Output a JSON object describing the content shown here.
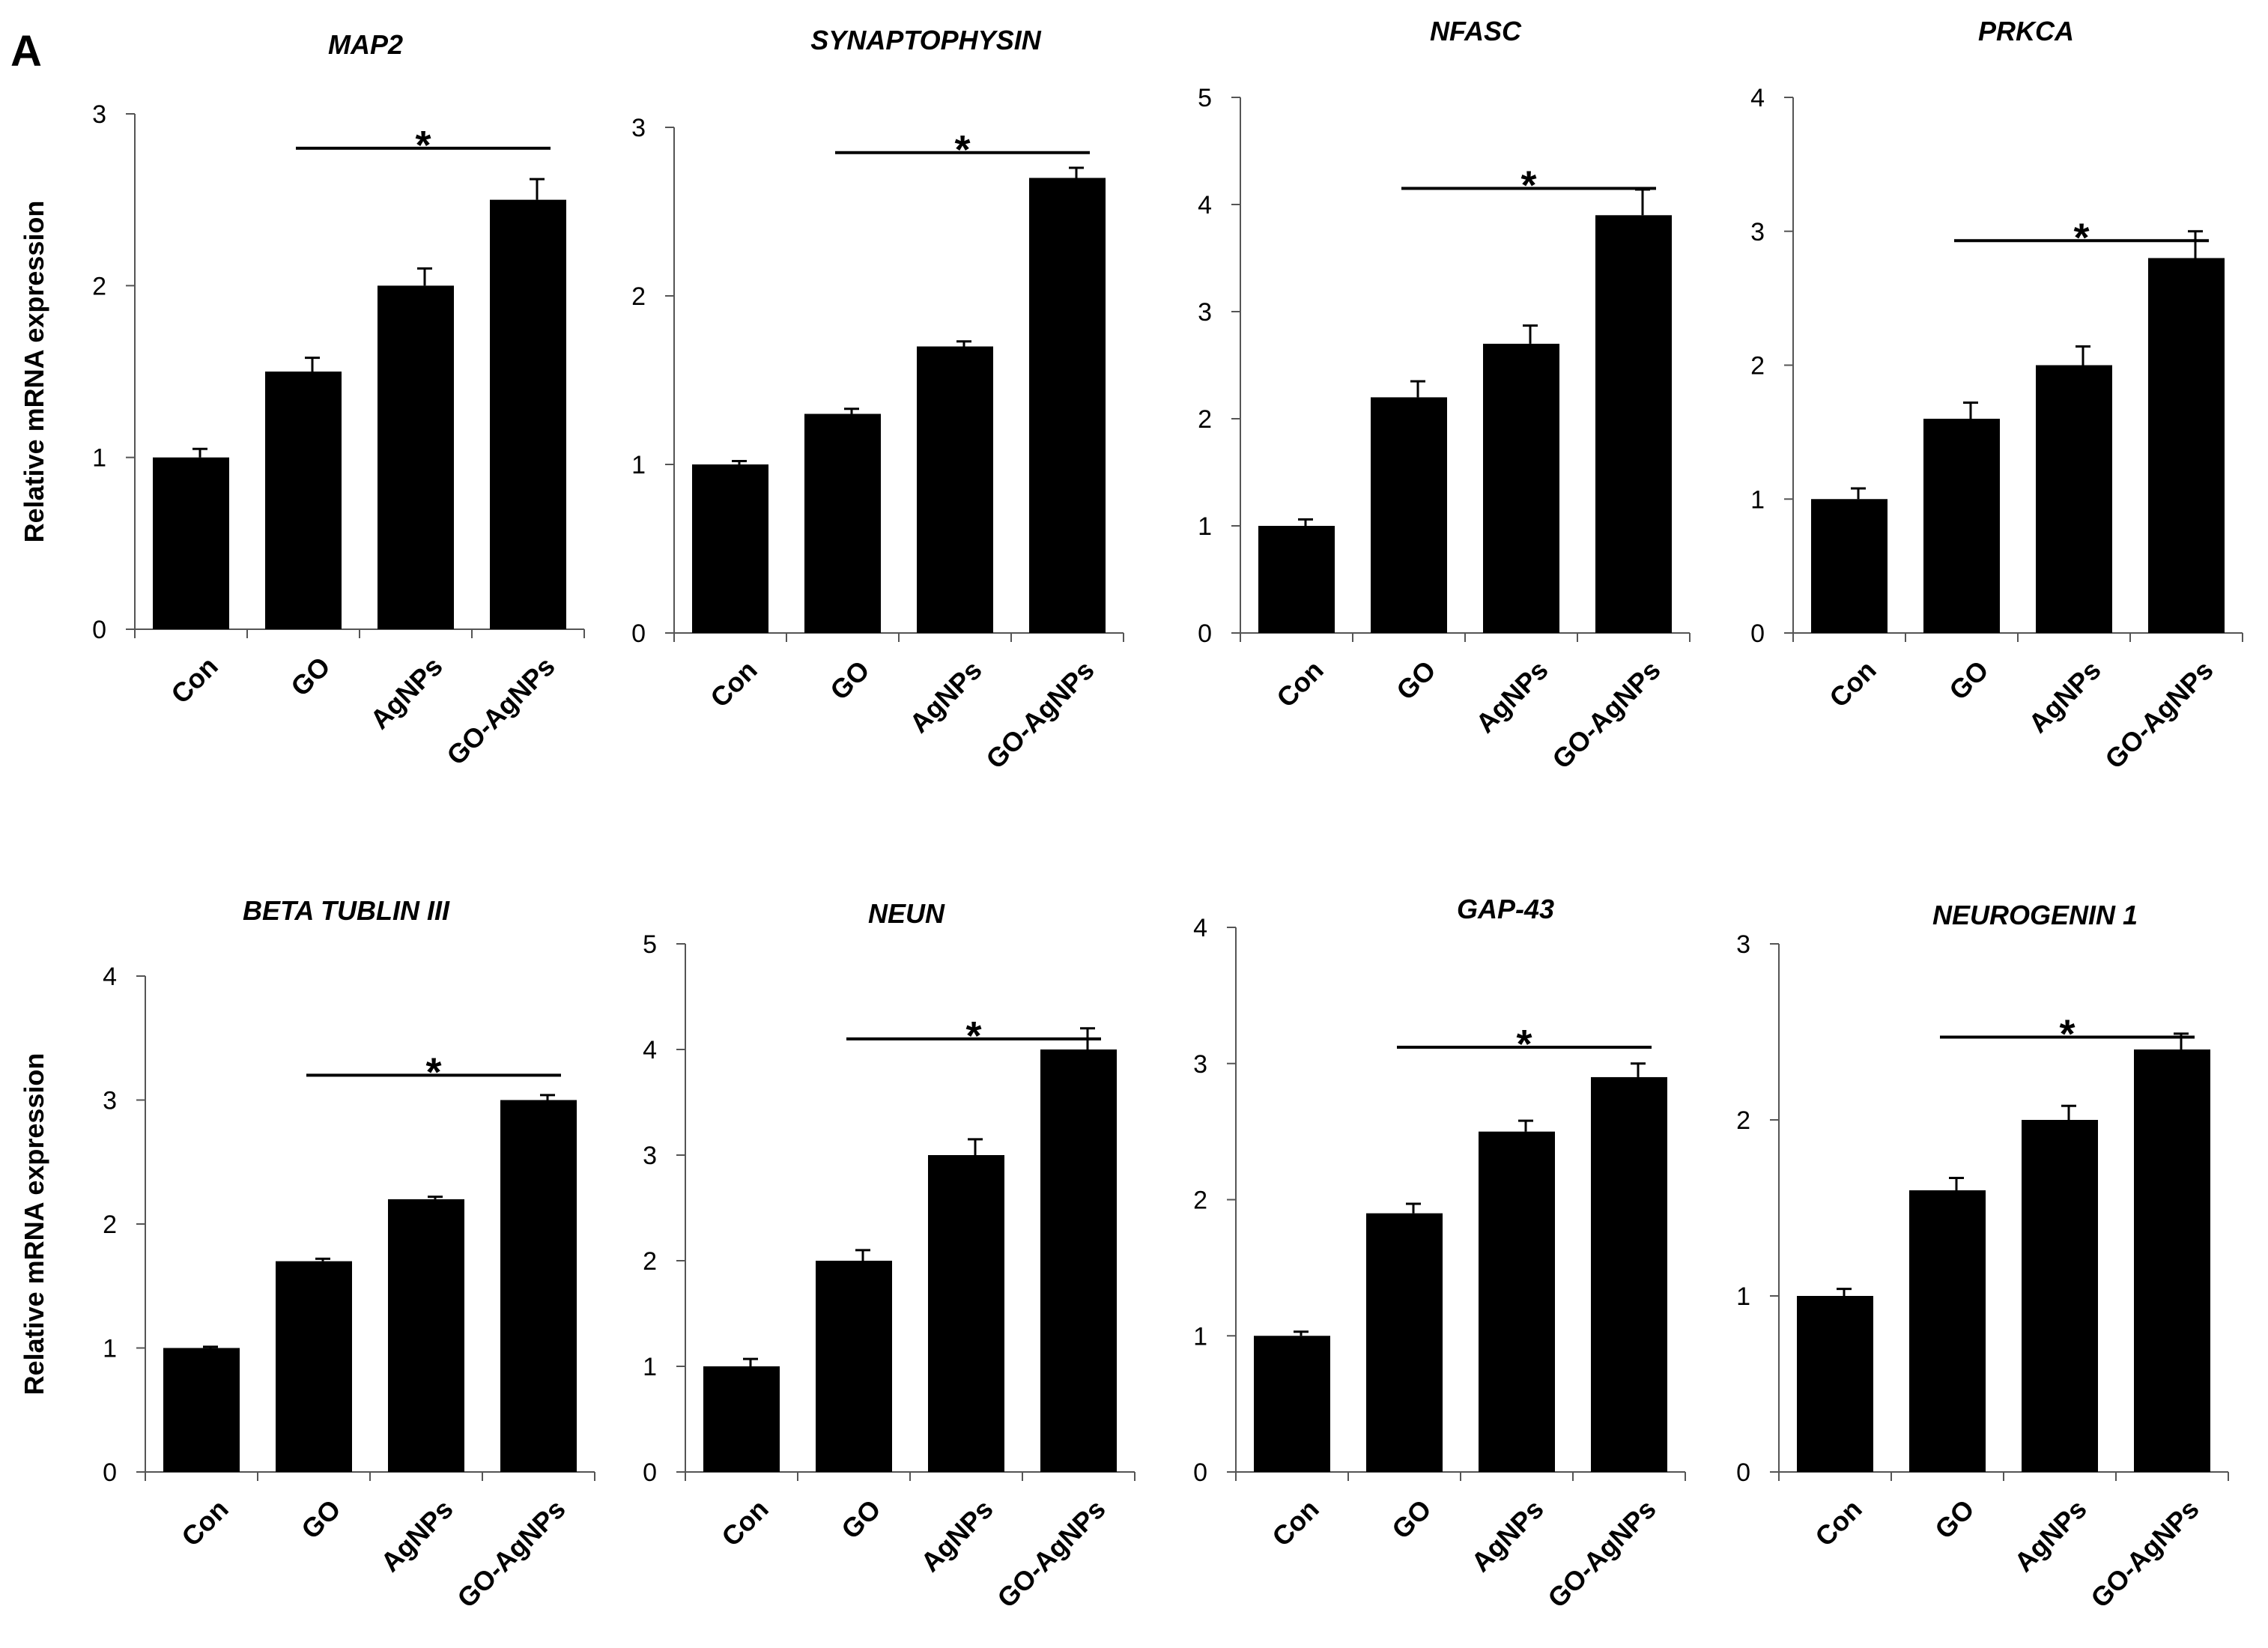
{
  "figure": {
    "panel_letter": "A",
    "bar_color": "#000000"
  },
  "chart_data": [
    {
      "type": "bar",
      "title": "MAP2",
      "ylabel": "Relative mRNA expression",
      "categories": [
        "Con",
        "GO",
        "AgNPs",
        "GO-AgNPs"
      ],
      "values": [
        1.0,
        1.5,
        2.0,
        2.5
      ],
      "errors": [
        0.05,
        0.08,
        0.1,
        0.12
      ],
      "ylim": [
        0,
        3
      ],
      "yticks": [
        "0",
        "1",
        "2",
        "3"
      ],
      "significance": {
        "from": "GO",
        "to": "GO-AgNPs",
        "y": 2.8,
        "label": "*"
      }
    },
    {
      "type": "bar",
      "title": "SYNAPTOPHYSIN",
      "ylabel": "",
      "categories": [
        "Con",
        "GO",
        "AgNPs",
        "GO-AgNPs"
      ],
      "values": [
        1.0,
        1.3,
        1.7,
        2.7
      ],
      "errors": [
        0.02,
        0.03,
        0.03,
        0.06
      ],
      "ylim": [
        0,
        3
      ],
      "yticks": [
        "0",
        "1",
        "2",
        "3"
      ],
      "significance": {
        "from": "GO",
        "to": "GO-AgNPs",
        "y": 2.85,
        "label": "*"
      }
    },
    {
      "type": "bar",
      "title": "NFASC",
      "ylabel": "",
      "categories": [
        "Con",
        "GO",
        "AgNPs",
        "GO-AgNPs"
      ],
      "values": [
        1.0,
        2.2,
        2.7,
        3.9
      ],
      "errors": [
        0.06,
        0.15,
        0.17,
        0.24
      ],
      "ylim": [
        0,
        5
      ],
      "yticks": [
        "0",
        "1",
        "2",
        "3",
        "4",
        "5"
      ],
      "significance": {
        "from": "GO",
        "to": "GO-AgNPs",
        "y": 4.15,
        "label": "*"
      }
    },
    {
      "type": "bar",
      "title": "PRKCA",
      "ylabel": "",
      "categories": [
        "Con",
        "GO",
        "AgNPs",
        "GO-AgNPs"
      ],
      "values": [
        1.0,
        1.6,
        2.0,
        2.8
      ],
      "errors": [
        0.08,
        0.12,
        0.14,
        0.2
      ],
      "ylim": [
        0,
        4
      ],
      "yticks": [
        "0",
        "1",
        "2",
        "3",
        "4"
      ],
      "significance": {
        "from": "GO",
        "to": "GO-AgNPs",
        "y": 2.93,
        "label": "*"
      }
    },
    {
      "type": "bar",
      "title": "BETA  TUBLIN III",
      "ylabel": "Relative mRNA expression",
      "categories": [
        "Con",
        "GO",
        "AgNPs",
        "GO-AgNPs"
      ],
      "values": [
        1.0,
        1.7,
        2.2,
        3.0
      ],
      "errors": [
        0.01,
        0.02,
        0.02,
        0.04
      ],
      "ylim": [
        0,
        4
      ],
      "yticks": [
        "0",
        "1",
        "2",
        "3",
        "4"
      ],
      "significance": {
        "from": "GO",
        "to": "GO-AgNPs",
        "y": 3.2,
        "label": "*"
      }
    },
    {
      "type": "bar",
      "title": "NEUN",
      "ylabel": "",
      "categories": [
        "Con",
        "GO",
        "AgNPs",
        "GO-AgNPs"
      ],
      "values": [
        1.0,
        2.0,
        3.0,
        4.0
      ],
      "errors": [
        0.07,
        0.1,
        0.15,
        0.2
      ],
      "ylim": [
        0,
        5
      ],
      "yticks": [
        "0",
        "1",
        "2",
        "3",
        "4",
        "5"
      ],
      "significance": {
        "from": "GO",
        "to": "GO-AgNPs",
        "y": 4.1,
        "label": "*"
      }
    },
    {
      "type": "bar",
      "title": "GAP-43",
      "ylabel": "",
      "categories": [
        "Con",
        "GO",
        "AgNPs",
        "GO-AgNPs"
      ],
      "values": [
        1.0,
        1.9,
        2.5,
        2.9
      ],
      "errors": [
        0.03,
        0.07,
        0.08,
        0.1
      ],
      "ylim": [
        0,
        4
      ],
      "yticks": [
        "0",
        "1",
        "2",
        "3",
        "4"
      ],
      "significance": {
        "from": "GO",
        "to": "GO-AgNPs",
        "y": 3.12,
        "label": "*"
      }
    },
    {
      "type": "bar",
      "title": "NEUROGENIN  1",
      "ylabel": "",
      "categories": [
        "Con",
        "GO",
        "AgNPs",
        "GO-AgNPs"
      ],
      "values": [
        1.0,
        1.6,
        2.0,
        2.4
      ],
      "errors": [
        0.04,
        0.07,
        0.08,
        0.09
      ],
      "ylim": [
        0,
        3
      ],
      "yticks": [
        "0",
        "1",
        "2",
        "3"
      ],
      "significance": {
        "from": "GO",
        "to": "GO-AgNPs",
        "y": 2.47,
        "label": "*"
      }
    }
  ]
}
